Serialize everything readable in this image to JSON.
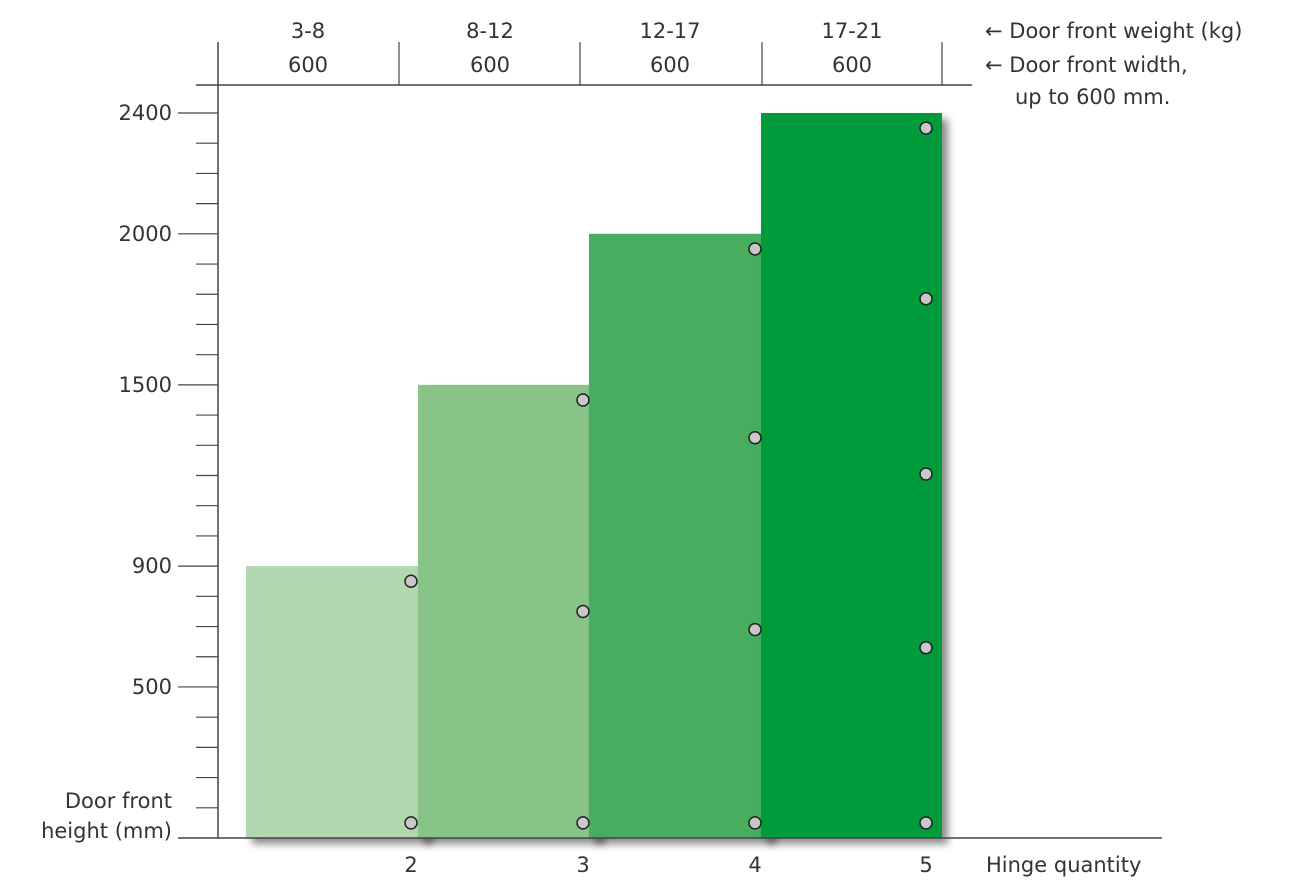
{
  "chart_data": {
    "type": "bar",
    "x_axis_label": "Hinge quantity",
    "y_axis_label_line1": "Door front",
    "y_axis_label_line2": "height (mm)",
    "weight_legend": "← Door front weight (kg)",
    "width_legend_line1": "← Door front width,",
    "width_legend_line2": "up to 600 mm.",
    "y_ticks_labeled": [
      "500",
      "900",
      "1500",
      "2000",
      "2400"
    ],
    "ylim": [
      0,
      2400
    ],
    "categories": [
      "2",
      "3",
      "4",
      "5"
    ],
    "bars": [
      {
        "hinges": "2",
        "weight": "3-8",
        "width": "600",
        "max_height": 900,
        "color": "#b2d8b0",
        "hinge_positions": [
          50,
          850
        ]
      },
      {
        "hinges": "3",
        "weight": "8-12",
        "width": "600",
        "max_height": 1500,
        "color": "#88c488",
        "hinge_positions": [
          50,
          750,
          1450
        ]
      },
      {
        "hinges": "4",
        "weight": "12-17",
        "width": "600",
        "max_height": 2000,
        "color": "#46ae5e",
        "hinge_positions": [
          50,
          690,
          1325,
          1950
        ]
      },
      {
        "hinges": "5",
        "weight": "17-21",
        "width": "600",
        "max_height": 2400,
        "color": "#009c3a",
        "hinge_positions": [
          50,
          630,
          1205,
          1785,
          2350
        ]
      }
    ]
  }
}
